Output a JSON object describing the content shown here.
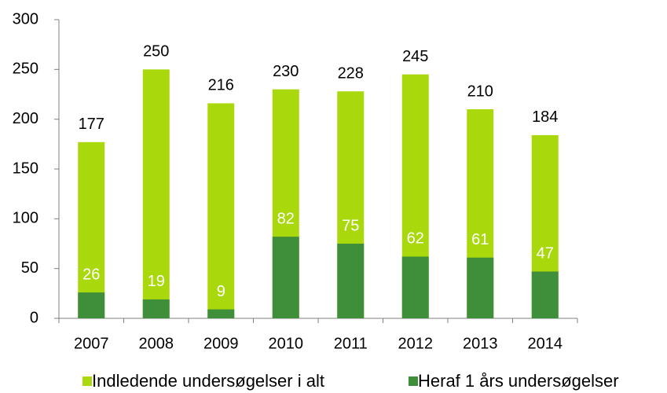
{
  "chart_data": {
    "type": "bar",
    "overlap": true,
    "categories": [
      "2007",
      "2008",
      "2009",
      "2010",
      "2011",
      "2012",
      "2013",
      "2014"
    ],
    "series": [
      {
        "name": "Indledende undersøgelser i alt",
        "color": "#a9d80c",
        "values": [
          177,
          250,
          216,
          230,
          228,
          245,
          210,
          184
        ]
      },
      {
        "name": "Heraf 1 års undersøgelser",
        "color": "#3f8f3a",
        "values": [
          26,
          19,
          9,
          82,
          75,
          62,
          61,
          47
        ]
      }
    ],
    "ylim": [
      0,
      300
    ],
    "yticks": [
      0,
      50,
      100,
      150,
      200,
      250,
      300
    ],
    "grid": false,
    "legend": "bottom"
  }
}
